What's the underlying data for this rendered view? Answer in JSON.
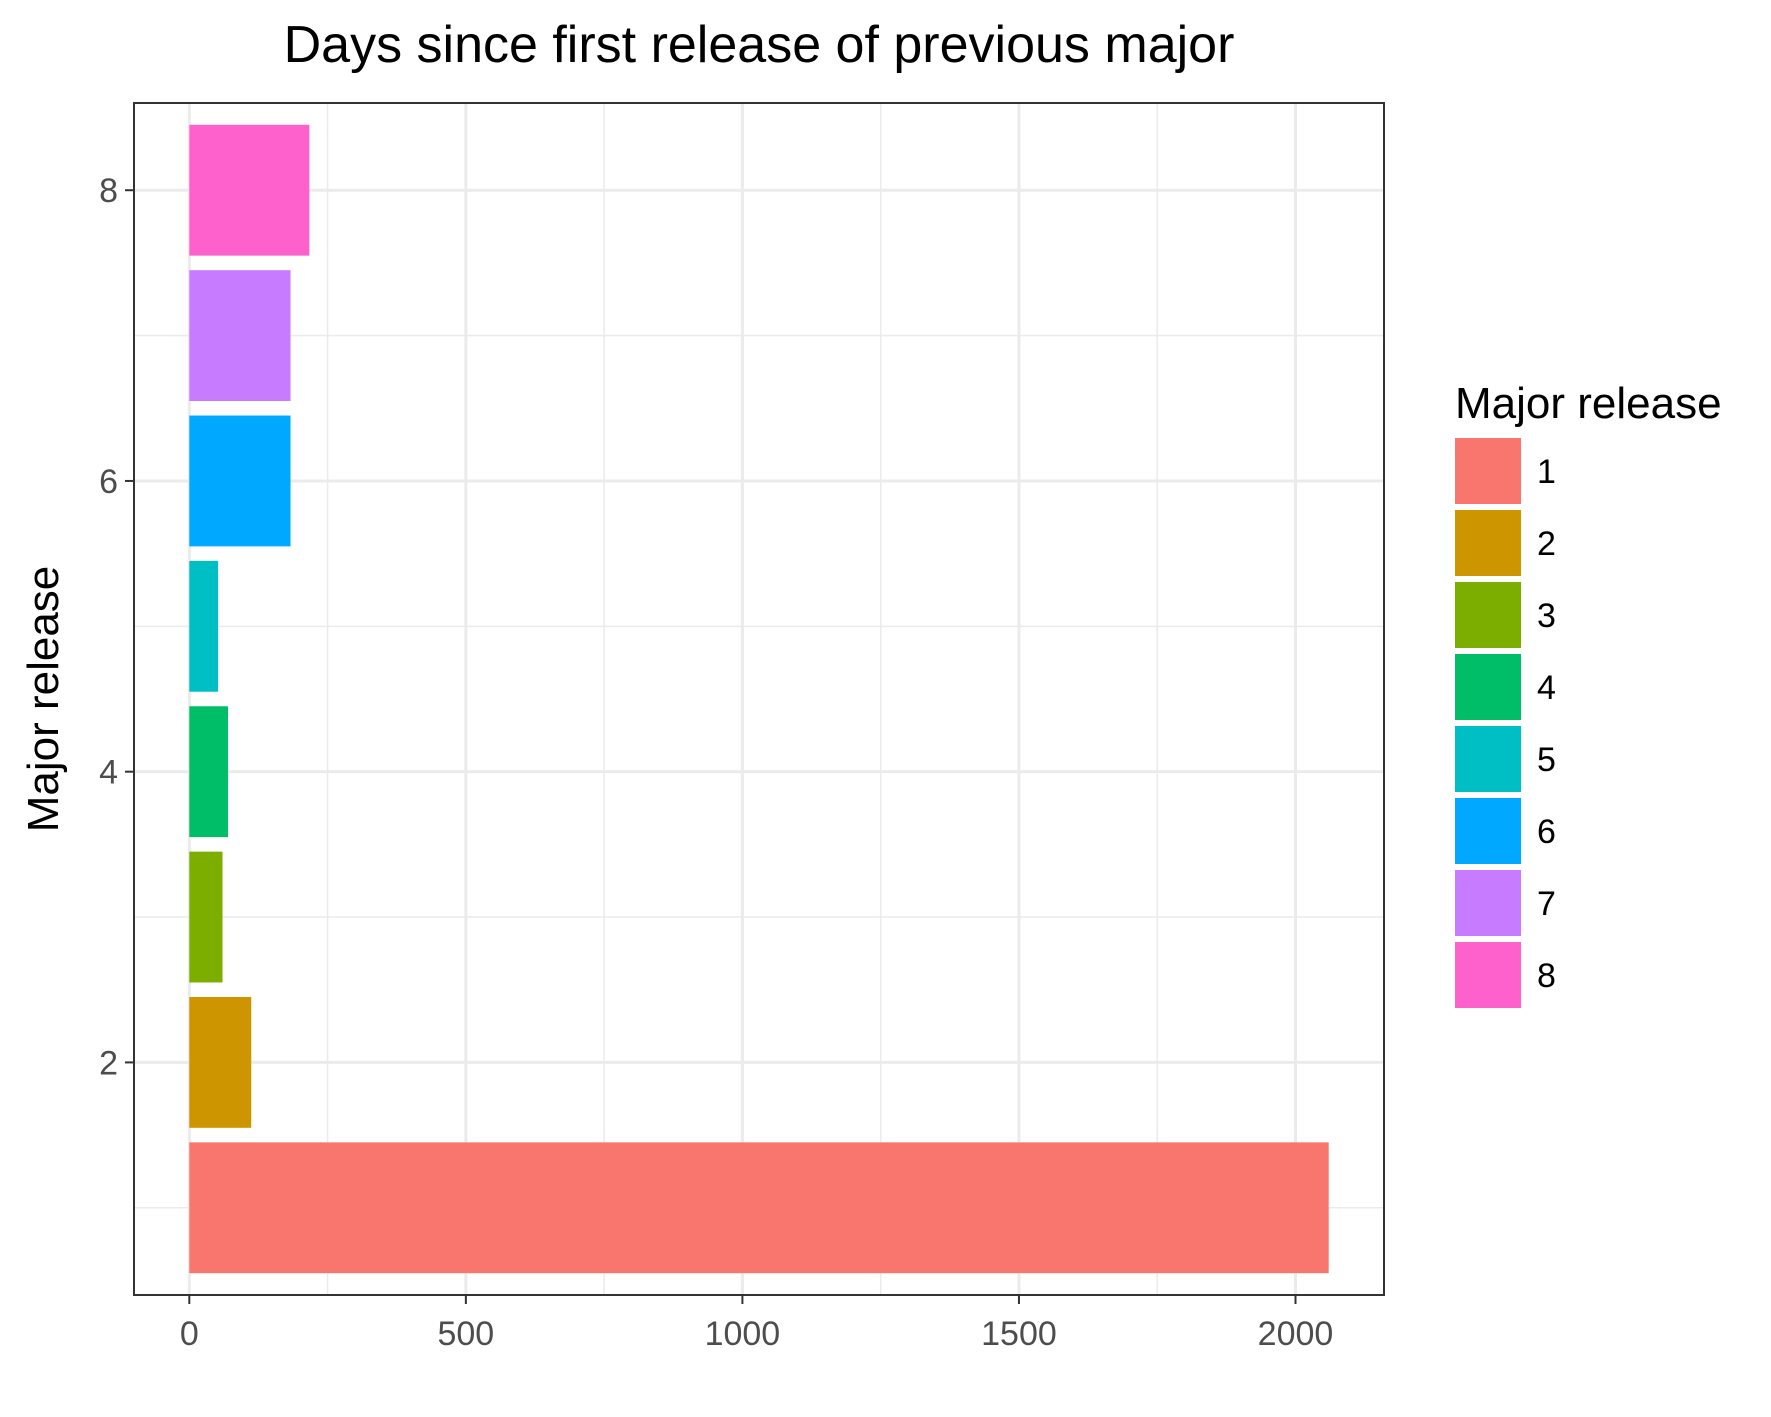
{
  "chart_data": {
    "type": "bar",
    "orientation": "horizontal",
    "title": "Days since first release of previous major",
    "xlabel": "",
    "ylabel": "Major release",
    "categories": [
      "1",
      "2",
      "3",
      "4",
      "5",
      "6",
      "7",
      "8"
    ],
    "y_positions": [
      1,
      2,
      3,
      4,
      5,
      6,
      7,
      8
    ],
    "values": [
      2060,
      112,
      60,
      70,
      52,
      183,
      183,
      217
    ],
    "colors": [
      "#F8766D",
      "#CD9600",
      "#7CAE00",
      "#00BE67",
      "#00BFC4",
      "#00A9FF",
      "#C77CFF",
      "#FF61CC"
    ],
    "xlim": [
      -100,
      2160
    ],
    "ylim": [
      0.4,
      8.6
    ],
    "x_ticks": [
      0,
      500,
      1000,
      1500,
      2000
    ],
    "x_tick_labels": [
      "0",
      "500",
      "1000",
      "1500",
      "2000"
    ],
    "y_ticks": [
      2,
      4,
      6,
      8
    ],
    "y_tick_labels": [
      "2",
      "4",
      "6",
      "8"
    ],
    "grid": true,
    "legend": {
      "title": "Major release",
      "position": "right",
      "labels": [
        "1",
        "2",
        "3",
        "4",
        "5",
        "6",
        "7",
        "8"
      ]
    },
    "background": "#FFFFFF",
    "grid_color": "#EBEBEB",
    "panel_border_color": "#333333"
  }
}
